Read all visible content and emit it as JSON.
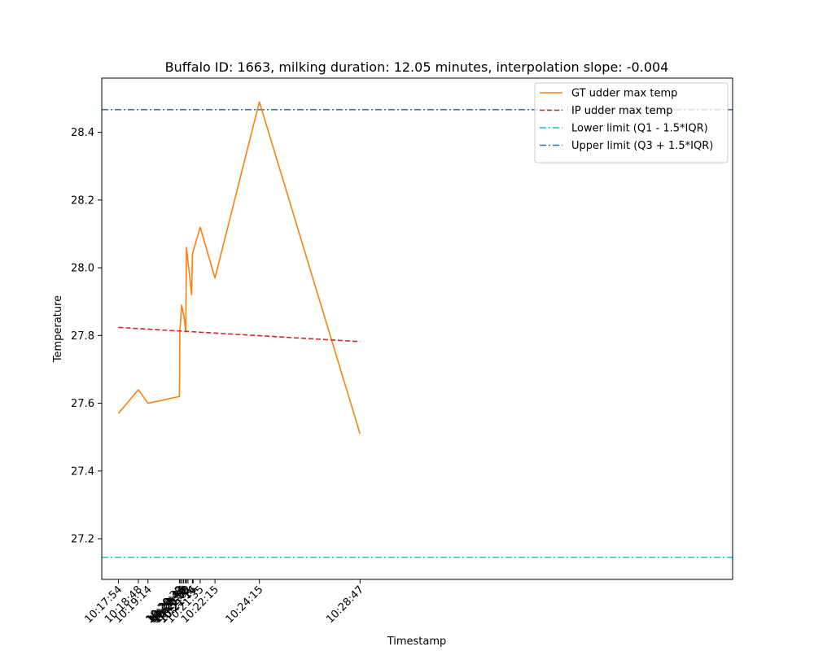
{
  "chart_data": {
    "type": "line",
    "title": "Buffalo ID: 1663, milking duration: 12.05 minutes, interpolation slope: -0.004",
    "xlabel": "Timestamp",
    "ylabel": "Temperature",
    "xlim": [
      -45,
      1660
    ],
    "ylim": [
      27.08,
      28.56
    ],
    "yticks": [
      27.2,
      27.4,
      27.6,
      27.8,
      28.0,
      28.2,
      28.4
    ],
    "xticks": [
      {
        "x": 0,
        "label": "10:17:54"
      },
      {
        "x": 54,
        "label": "10:18:48"
      },
      {
        "x": 80,
        "label": "10:19:14"
      },
      {
        "x": 165,
        "label": "10:20:39"
      },
      {
        "x": 168,
        "label": "10:20:42"
      },
      {
        "x": 172,
        "label": "10:20:46"
      },
      {
        "x": 176,
        "label": "10:20:50"
      },
      {
        "x": 181,
        "label": "10:20:55"
      },
      {
        "x": 184,
        "label": "10:20:58"
      },
      {
        "x": 188,
        "label": "10:21:02"
      },
      {
        "x": 200,
        "label": "10:21:14"
      },
      {
        "x": 202,
        "label": "10:21:16"
      },
      {
        "x": 221,
        "label": "10:21:35"
      },
      {
        "x": 261,
        "label": "10:22:15"
      },
      {
        "x": 381,
        "label": "10:24:15"
      },
      {
        "x": 653,
        "label": "10:28:47"
      }
    ],
    "series": [
      {
        "name": "GT udder max temp",
        "color": "#ff7f0e",
        "style": "solid",
        "points": [
          [
            0,
            27.57
          ],
          [
            54,
            27.64
          ],
          [
            80,
            27.6
          ],
          [
            165,
            27.62
          ],
          [
            166,
            27.81
          ],
          [
            171,
            27.89
          ],
          [
            178,
            27.85
          ],
          [
            182,
            27.81
          ],
          [
            184,
            28.06
          ],
          [
            198,
            27.92
          ],
          [
            200,
            28.04
          ],
          [
            221,
            28.12
          ],
          [
            261,
            27.97
          ],
          [
            381,
            28.49
          ],
          [
            653,
            27.51
          ]
        ]
      },
      {
        "name": "IP udder max temp",
        "color": "#d62728",
        "style": "dashed",
        "points": [
          [
            0,
            27.824
          ],
          [
            653,
            27.782
          ]
        ]
      },
      {
        "name": "Lower limit (Q1 - 1.5*IQR)",
        "color": "#17becf",
        "style": "dashdot",
        "hline": 27.145
      },
      {
        "name": "Upper limit (Q3 + 1.5*IQR)",
        "color": "#1f77b4",
        "style": "dashdot",
        "hline": 28.467
      }
    ],
    "legend": "top-right",
    "grid": false
  }
}
